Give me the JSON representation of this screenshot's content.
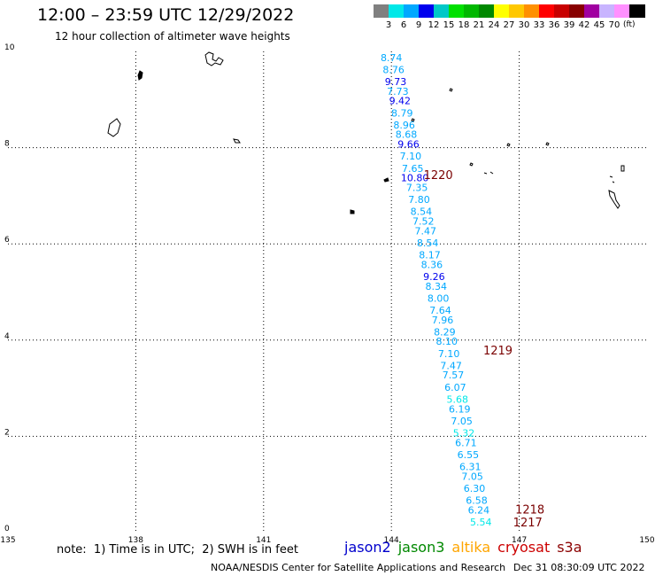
{
  "title": "12:00 – 23:59 UTC 12/29/2022",
  "subtitle": "12 hour collection of altimeter wave heights",
  "color_scale": {
    "labels": [
      "3",
      "6",
      "9",
      "12",
      "15",
      "18",
      "21",
      "24",
      "27",
      "30",
      "33",
      "36",
      "39",
      "42",
      "45",
      "70"
    ],
    "unit": "(ft)",
    "colors": [
      "#808080",
      "#00e8e8",
      "#00a8ff",
      "#0000ee",
      "#00c8c8",
      "#00e000",
      "#00b800",
      "#008800",
      "#ffff00",
      "#ffc800",
      "#ff9000",
      "#ff0000",
      "#c80000",
      "#880000",
      "#a000a0",
      "#c8b4ff",
      "#ff90ff",
      "#000000"
    ]
  },
  "map": {
    "lon_ticks": [
      "135",
      "138",
      "141",
      "144",
      "147",
      "150"
    ],
    "lat_ticks": [
      "10",
      "8",
      "6",
      "4",
      "2",
      "0"
    ]
  },
  "chart_data": {
    "type": "scatter",
    "x_range": [
      135,
      150
    ],
    "y_range": [
      0,
      10
    ],
    "units": "ft",
    "points": [
      {
        "lon": 144.0,
        "lat": 9.8,
        "value": "8.74",
        "color": "#00a8ff"
      },
      {
        "lon": 144.05,
        "lat": 9.55,
        "value": "8.76",
        "color": "#00a8ff"
      },
      {
        "lon": 144.1,
        "lat": 9.3,
        "value": "9.73",
        "color": "#0000ee"
      },
      {
        "lon": 144.15,
        "lat": 9.1,
        "value": "7.73",
        "color": "#00a8ff"
      },
      {
        "lon": 144.2,
        "lat": 8.9,
        "value": "9.42",
        "color": "#0000ee"
      },
      {
        "lon": 144.25,
        "lat": 8.65,
        "value": "8.79",
        "color": "#00a8ff"
      },
      {
        "lon": 144.3,
        "lat": 8.4,
        "value": "8.96",
        "color": "#00a8ff"
      },
      {
        "lon": 144.35,
        "lat": 8.2,
        "value": "8.68",
        "color": "#00a8ff"
      },
      {
        "lon": 144.4,
        "lat": 8.0,
        "value": "9.66",
        "color": "#0000ee"
      },
      {
        "lon": 144.45,
        "lat": 7.75,
        "value": "7.10",
        "color": "#00a8ff"
      },
      {
        "lon": 144.5,
        "lat": 7.5,
        "value": "7.65",
        "color": "#00a8ff"
      },
      {
        "lon": 144.55,
        "lat": 7.3,
        "value": "10.80",
        "color": "#0000ee"
      },
      {
        "lon": 144.6,
        "lat": 7.1,
        "value": "7.35",
        "color": "#00a8ff"
      },
      {
        "lon": 144.65,
        "lat": 6.85,
        "value": "7.80",
        "color": "#00a8ff"
      },
      {
        "lon": 144.7,
        "lat": 6.6,
        "value": "8.54",
        "color": "#00a8ff"
      },
      {
        "lon": 144.75,
        "lat": 6.4,
        "value": "7.52",
        "color": "#00a8ff"
      },
      {
        "lon": 144.8,
        "lat": 6.2,
        "value": "7.47",
        "color": "#00a8ff"
      },
      {
        "lon": 144.85,
        "lat": 5.95,
        "value": "8.54",
        "color": "#00a8ff"
      },
      {
        "lon": 144.9,
        "lat": 5.7,
        "value": "8.17",
        "color": "#00a8ff"
      },
      {
        "lon": 144.95,
        "lat": 5.5,
        "value": "8.36",
        "color": "#00a8ff"
      },
      {
        "lon": 145.0,
        "lat": 5.25,
        "value": "9.26",
        "color": "#0000ee"
      },
      {
        "lon": 145.05,
        "lat": 5.05,
        "value": "8.34",
        "color": "#00a8ff"
      },
      {
        "lon": 145.1,
        "lat": 4.8,
        "value": "8.00",
        "color": "#00a8ff"
      },
      {
        "lon": 145.15,
        "lat": 4.55,
        "value": "7.64",
        "color": "#00a8ff"
      },
      {
        "lon": 145.2,
        "lat": 4.35,
        "value": "7.96",
        "color": "#00a8ff"
      },
      {
        "lon": 145.25,
        "lat": 4.1,
        "value": "8.29",
        "color": "#00a8ff"
      },
      {
        "lon": 145.3,
        "lat": 3.9,
        "value": "8.10",
        "color": "#00a8ff"
      },
      {
        "lon": 145.35,
        "lat": 3.65,
        "value": "7.10",
        "color": "#00a8ff"
      },
      {
        "lon": 145.4,
        "lat": 3.4,
        "value": "7.47",
        "color": "#00a8ff"
      },
      {
        "lon": 145.45,
        "lat": 3.2,
        "value": "7.57",
        "color": "#00a8ff"
      },
      {
        "lon": 145.5,
        "lat": 2.95,
        "value": "6.07",
        "color": "#00a8ff"
      },
      {
        "lon": 145.55,
        "lat": 2.7,
        "value": "5.68",
        "color": "#00e8e8"
      },
      {
        "lon": 145.6,
        "lat": 2.5,
        "value": "6.19",
        "color": "#00a8ff"
      },
      {
        "lon": 145.65,
        "lat": 2.25,
        "value": "7.05",
        "color": "#00a8ff"
      },
      {
        "lon": 145.7,
        "lat": 2.0,
        "value": "5.32",
        "color": "#00e8e8"
      },
      {
        "lon": 145.75,
        "lat": 1.8,
        "value": "6.71",
        "color": "#00a8ff"
      },
      {
        "lon": 145.8,
        "lat": 1.55,
        "value": "6.55",
        "color": "#00a8ff"
      },
      {
        "lon": 145.85,
        "lat": 1.3,
        "value": "6.31",
        "color": "#00a8ff"
      },
      {
        "lon": 145.9,
        "lat": 1.1,
        "value": "7.05",
        "color": "#00a8ff"
      },
      {
        "lon": 145.95,
        "lat": 0.85,
        "value": "6.30",
        "color": "#00a8ff"
      },
      {
        "lon": 146.0,
        "lat": 0.6,
        "value": "6.58",
        "color": "#00a8ff"
      },
      {
        "lon": 146.05,
        "lat": 0.4,
        "value": "6.24",
        "color": "#00a8ff"
      },
      {
        "lon": 146.1,
        "lat": 0.15,
        "value": "5.54",
        "color": "#00e8e8"
      }
    ],
    "pass_labels": [
      {
        "lon": 145.1,
        "lat": 7.35,
        "text": "1220"
      },
      {
        "lon": 146.5,
        "lat": 3.7,
        "text": "1219"
      },
      {
        "lon": 147.25,
        "lat": 0.4,
        "text": "1218"
      },
      {
        "lon": 147.2,
        "lat": 0.13,
        "text": "1217"
      }
    ]
  },
  "note": "note:  1) Time is in UTC;  2) SWH is in feet",
  "legend": [
    {
      "label": "jason2",
      "color": "#0000cc"
    },
    {
      "label": "jason3",
      "color": "#008800"
    },
    {
      "label": "altika",
      "color": "#ffa500"
    },
    {
      "label": "cryosat",
      "color": "#cc0000"
    },
    {
      "label": "s3a",
      "color": "#8b0000"
    }
  ],
  "credit": "NOAA/NESDIS Center for Satellite Applications and Research",
  "timestamp": "Dec 31 08:30:09 UTC 2022"
}
